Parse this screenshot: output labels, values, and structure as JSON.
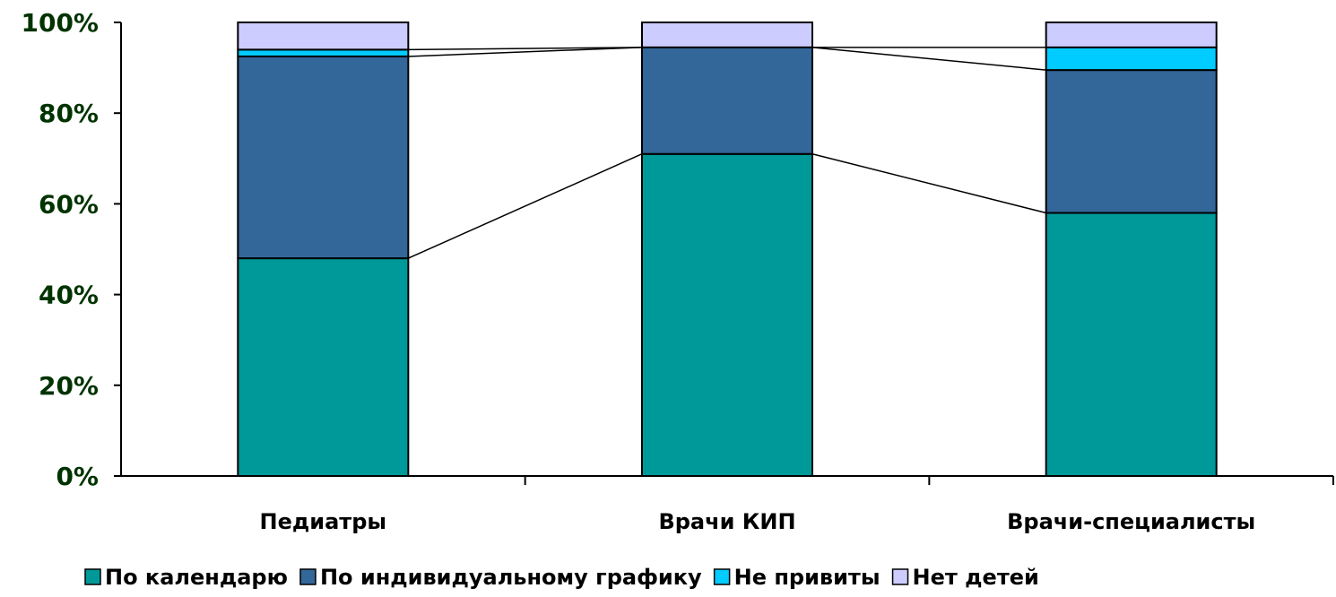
{
  "chart_data": {
    "type": "bar",
    "stacked": true,
    "percent": true,
    "categories": [
      "Педиатры",
      "Врачи КИП",
      "Врачи-специалисты"
    ],
    "series": [
      {
        "name": "По календарю",
        "values": [
          48,
          71,
          58
        ],
        "color": "#009999"
      },
      {
        "name": "По индивидуальному графику",
        "values": [
          44.5,
          23.5,
          31.5
        ],
        "color": "#336699"
      },
      {
        "name": "Не привиты",
        "values": [
          1.5,
          0,
          5
        ],
        "color": "#00CCFF"
      },
      {
        "name": "Нет детей",
        "values": [
          6,
          5.5,
          5.5
        ],
        "color": "#CCCCFF"
      }
    ],
    "yticks": [
      "0%",
      "20%",
      "40%",
      "60%",
      "80%",
      "100%"
    ],
    "ylim": [
      0,
      100
    ],
    "legend_position": "bottom",
    "series_lines": true,
    "grid": false
  }
}
